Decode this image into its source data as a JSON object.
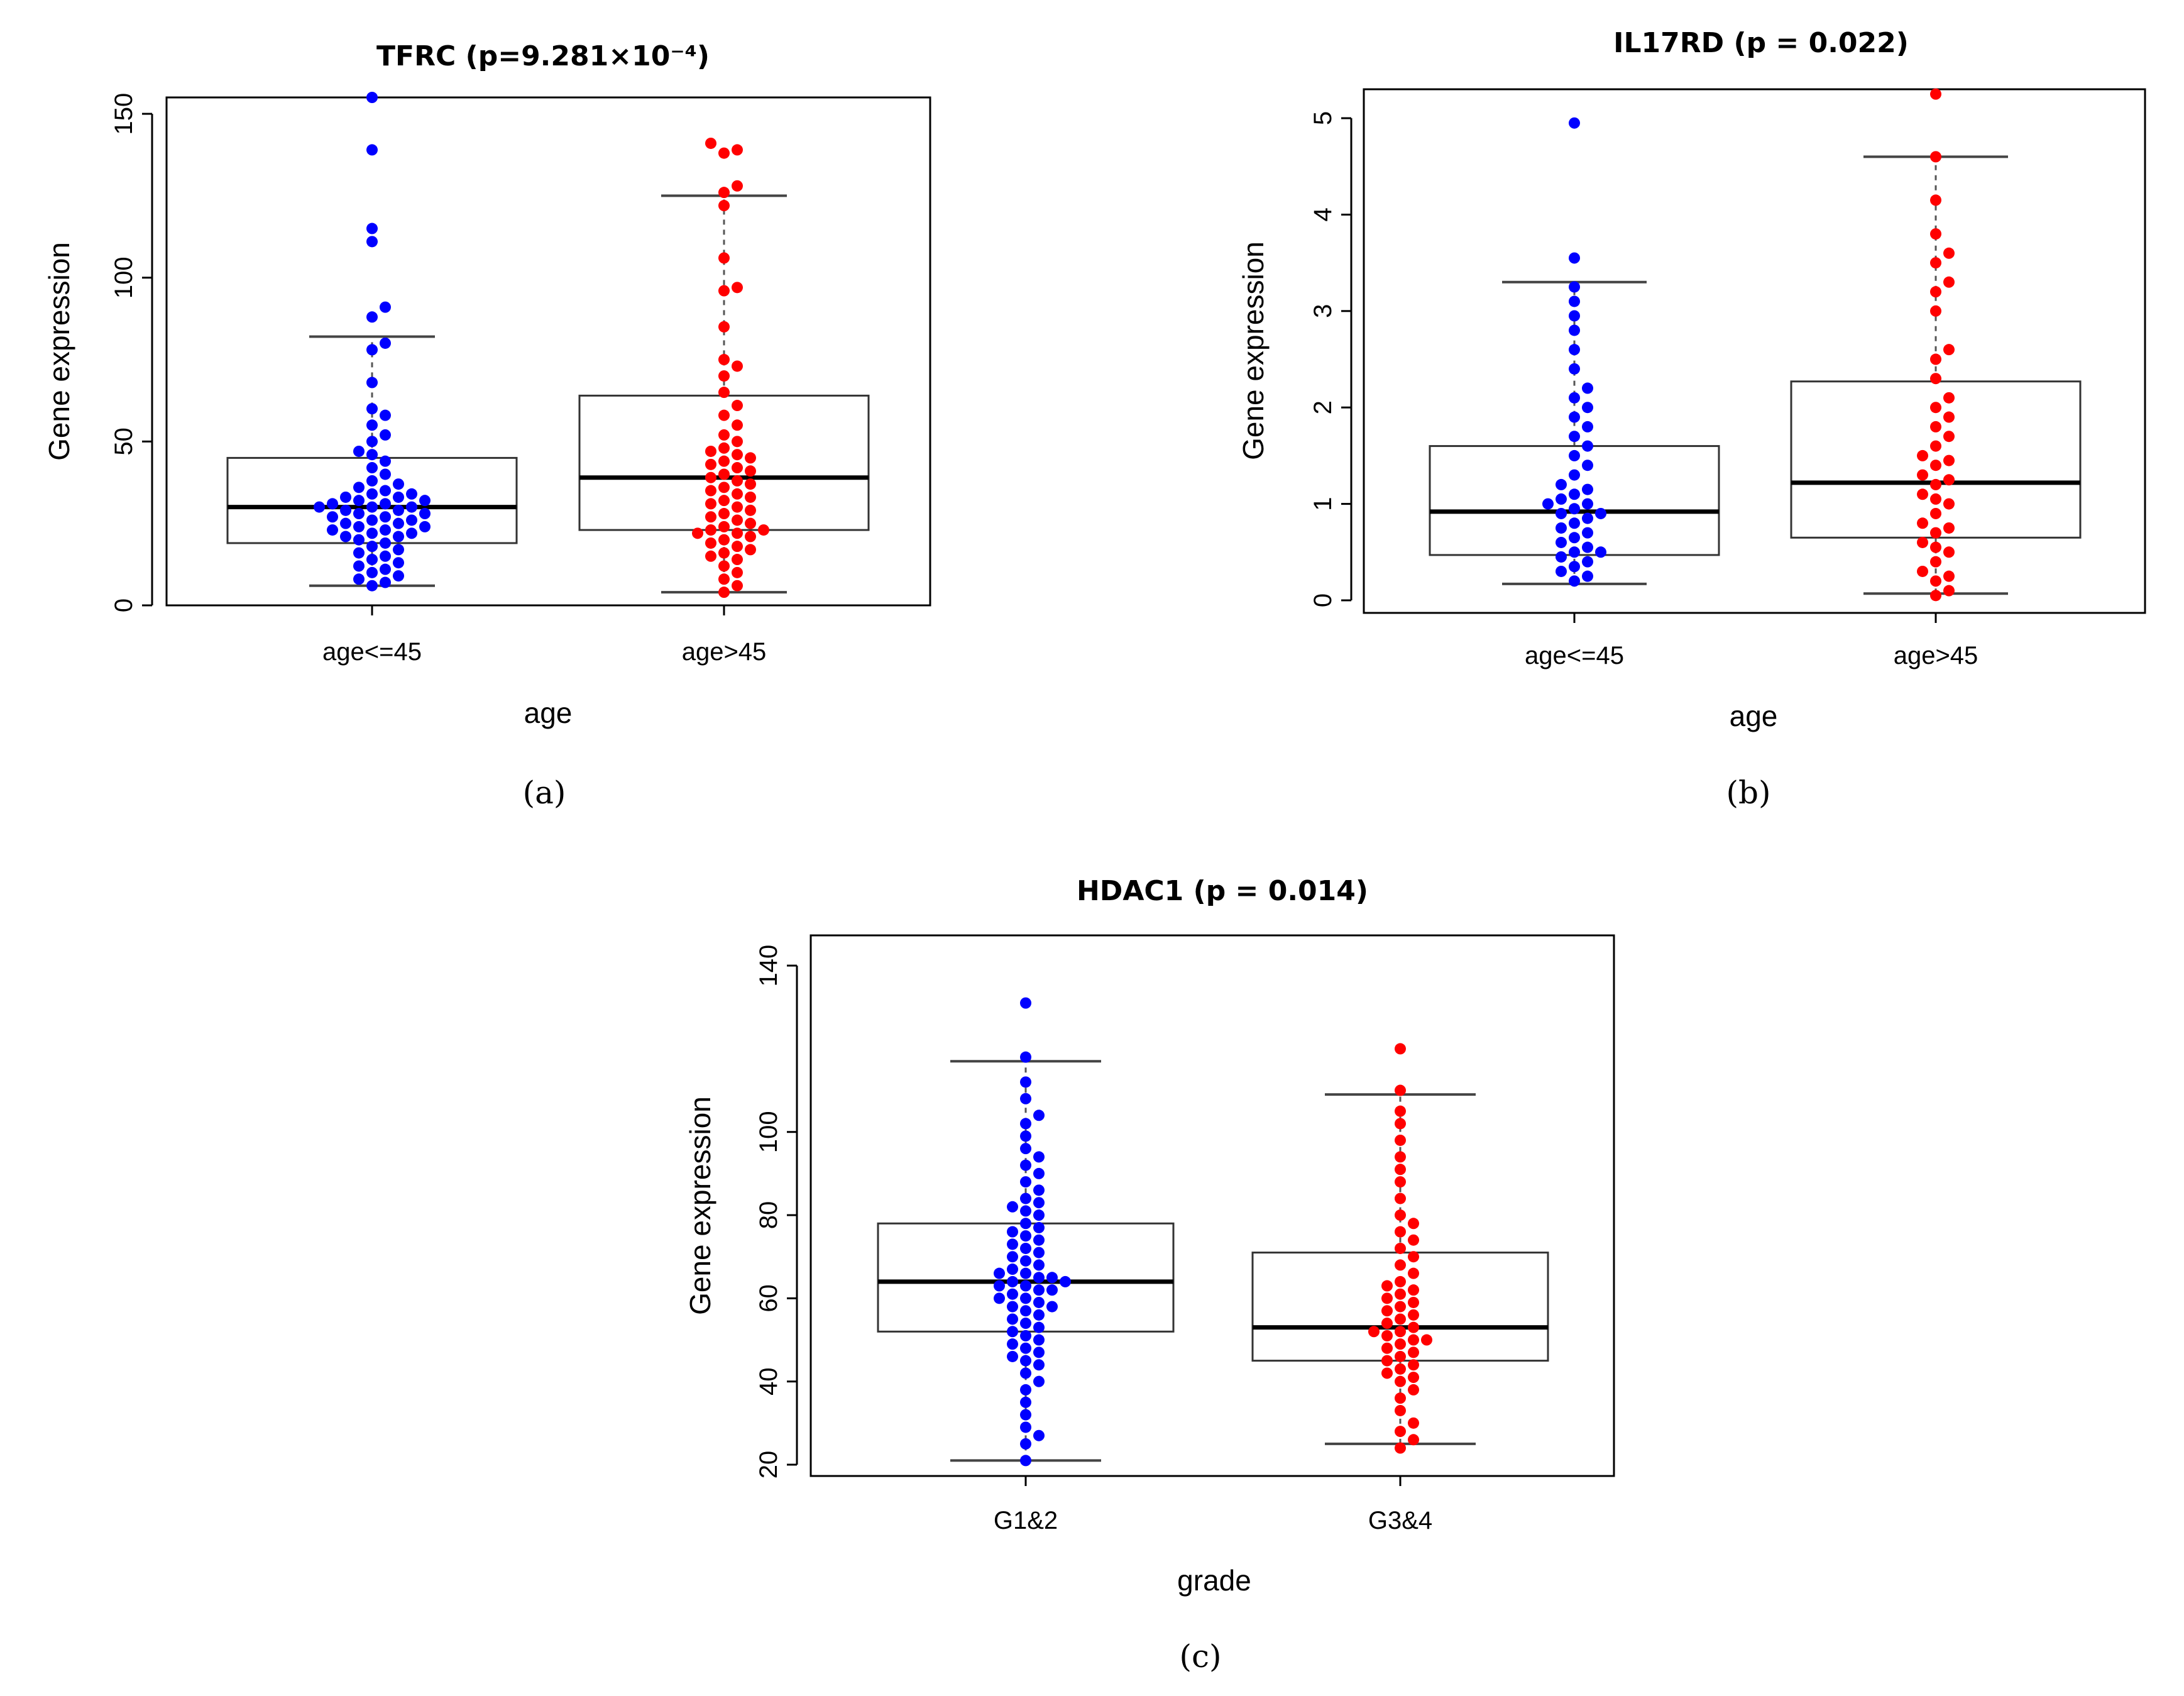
{
  "chart_data": [
    {
      "type": "boxplot-beeswarm",
      "panel_label": "(a)",
      "title": "TFRC (p=9.281×10⁻⁴)",
      "xlabel": "age",
      "ylabel": "Gene expression",
      "ylim": [
        0,
        155
      ],
      "yticks": [
        0,
        50,
        100,
        150
      ],
      "categories": [
        "age<=45",
        "age>45"
      ],
      "colors": [
        "#0000ff",
        "#ff0000"
      ],
      "boxes": [
        {
          "whisker_low": 6,
          "q1": 19,
          "median": 30,
          "q3": 45,
          "whisker_high": 82
        },
        {
          "whisker_low": 4,
          "q1": 23,
          "median": 39,
          "q3": 64,
          "whisker_high": 125
        }
      ],
      "points": [
        [
          6,
          7,
          8,
          9,
          10,
          11,
          12,
          13,
          14,
          15,
          16,
          17,
          18,
          19,
          20,
          21,
          21,
          22,
          22,
          23,
          23,
          24,
          24,
          25,
          25,
          26,
          26,
          27,
          27,
          28,
          28,
          29,
          29,
          30,
          30,
          30,
          31,
          31,
          32,
          32,
          33,
          33,
          34,
          34,
          35,
          36,
          37,
          38,
          40,
          42,
          44,
          46,
          47,
          50,
          52,
          55,
          58,
          60,
          68,
          78,
          80,
          88,
          91,
          111,
          115,
          139,
          155
        ],
        [
          4,
          6,
          8,
          10,
          12,
          14,
          15,
          16,
          17,
          18,
          19,
          20,
          21,
          22,
          22,
          23,
          23,
          24,
          25,
          26,
          27,
          28,
          29,
          30,
          31,
          32,
          33,
          34,
          35,
          36,
          37,
          38,
          39,
          40,
          41,
          42,
          43,
          44,
          45,
          46,
          47,
          48,
          50,
          52,
          55,
          58,
          61,
          65,
          70,
          73,
          75,
          85,
          96,
          97,
          106,
          122,
          126,
          128,
          138,
          139,
          141
        ]
      ]
    },
    {
      "type": "boxplot-beeswarm",
      "panel_label": "(b)",
      "title": "IL17RD (p = 0.022)",
      "xlabel": "age",
      "ylabel": "Gene expression",
      "ylim": [
        0,
        5.3
      ],
      "yticks": [
        0,
        1,
        2,
        3,
        4,
        5
      ],
      "categories": [
        "age<=45",
        "age>45"
      ],
      "colors": [
        "#0000ff",
        "#ff0000"
      ],
      "boxes": [
        {
          "whisker_low": 0.17,
          "q1": 0.47,
          "median": 0.92,
          "q3": 1.6,
          "whisker_high": 3.3
        },
        {
          "whisker_low": 0.07,
          "q1": 0.65,
          "median": 1.22,
          "q3": 2.27,
          "whisker_high": 4.6
        }
      ],
      "points": [
        [
          0.2,
          0.25,
          0.3,
          0.35,
          0.4,
          0.45,
          0.5,
          0.5,
          0.55,
          0.6,
          0.65,
          0.7,
          0.75,
          0.8,
          0.85,
          0.9,
          0.9,
          0.95,
          1.0,
          1.0,
          1.05,
          1.1,
          1.15,
          1.2,
          1.3,
          1.4,
          1.5,
          1.6,
          1.7,
          1.8,
          1.9,
          2.0,
          2.1,
          2.2,
          2.4,
          2.6,
          2.8,
          2.95,
          3.1,
          3.25,
          3.55,
          4.95
        ],
        [
          0.05,
          0.1,
          0.2,
          0.25,
          0.3,
          0.4,
          0.5,
          0.55,
          0.6,
          0.7,
          0.75,
          0.8,
          0.9,
          1.0,
          1.05,
          1.1,
          1.2,
          1.25,
          1.3,
          1.4,
          1.45,
          1.5,
          1.6,
          1.7,
          1.8,
          1.9,
          2.0,
          2.1,
          2.3,
          2.5,
          2.6,
          3.0,
          3.2,
          3.3,
          3.5,
          3.6,
          3.8,
          4.15,
          4.6,
          5.25
        ]
      ]
    },
    {
      "type": "boxplot-beeswarm",
      "panel_label": "(c)",
      "title": "HDAC1 (p = 0.014)",
      "xlabel": "grade",
      "ylabel": "Gene expression",
      "ylim": [
        20,
        145
      ],
      "yticks": [
        20,
        40,
        60,
        80,
        100,
        140
      ],
      "categories": [
        "G1&2",
        "G3&4"
      ],
      "colors": [
        "#0000ff",
        "#ff0000"
      ],
      "boxes": [
        {
          "whisker_low": 21,
          "q1": 52,
          "median": 64,
          "q3": 78,
          "whisker_high": 117
        },
        {
          "whisker_low": 25,
          "q1": 45,
          "median": 53,
          "q3": 71,
          "whisker_high": 109
        }
      ],
      "points": [
        [
          21,
          25,
          27,
          29,
          32,
          35,
          38,
          40,
          42,
          44,
          45,
          46,
          47,
          48,
          49,
          50,
          51,
          52,
          53,
          54,
          55,
          56,
          57,
          58,
          58,
          59,
          60,
          60,
          61,
          62,
          62,
          63,
          63,
          64,
          64,
          65,
          65,
          66,
          66,
          67,
          68,
          69,
          70,
          71,
          72,
          73,
          74,
          75,
          76,
          77,
          78,
          80,
          81,
          82,
          83,
          84,
          86,
          88,
          90,
          92,
          94,
          96,
          99,
          102,
          104,
          108,
          112,
          118,
          131
        ],
        [
          24,
          26,
          28,
          30,
          33,
          36,
          38,
          40,
          41,
          42,
          43,
          44,
          45,
          46,
          47,
          48,
          49,
          50,
          50,
          51,
          52,
          52,
          53,
          54,
          55,
          56,
          57,
          58,
          59,
          60,
          61,
          62,
          63,
          64,
          66,
          68,
          70,
          72,
          74,
          76,
          78,
          80,
          84,
          88,
          91,
          94,
          98,
          102,
          105,
          110,
          120
        ]
      ]
    }
  ]
}
